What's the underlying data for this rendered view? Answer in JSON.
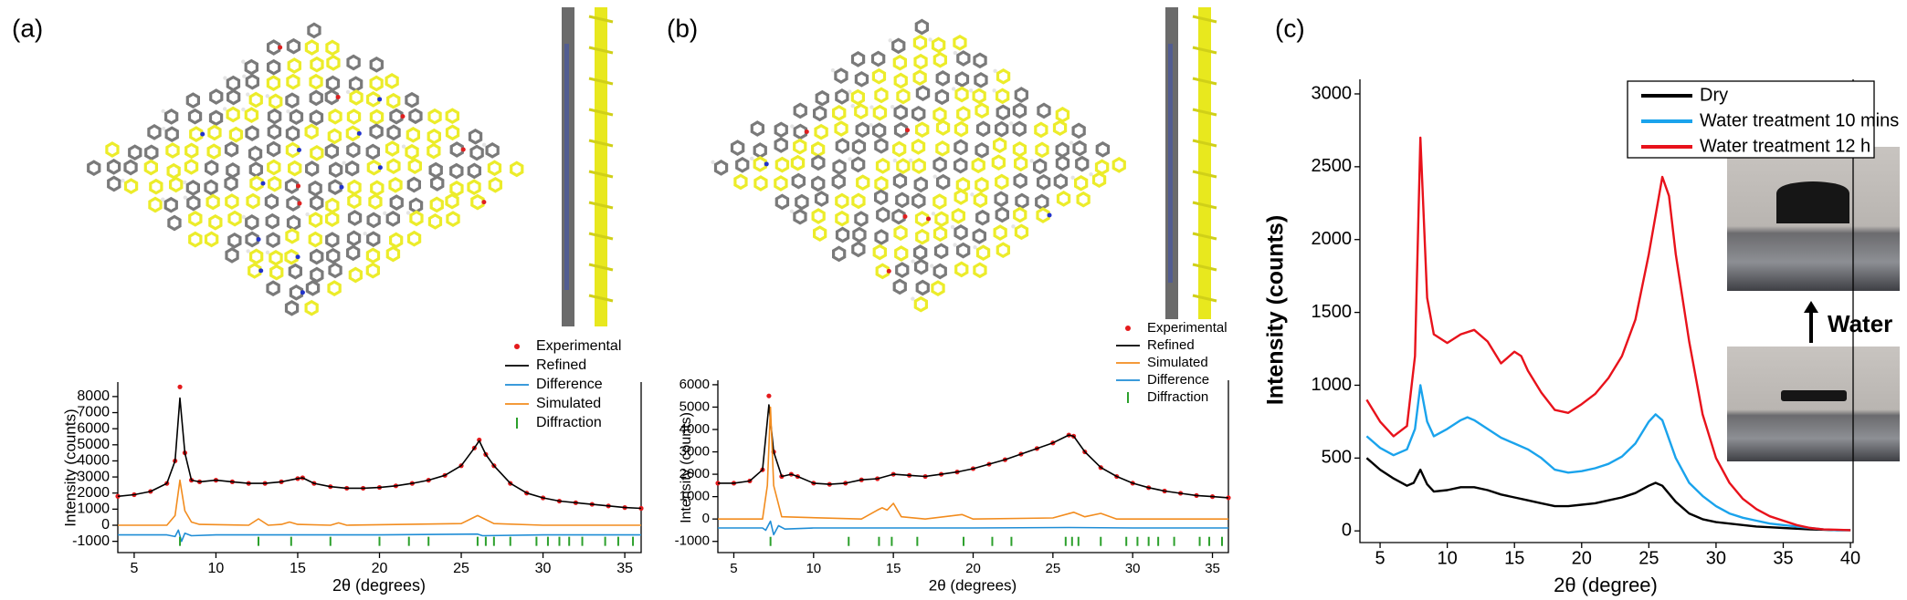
{
  "chart_data": [
    {
      "type": "line",
      "label": "(a)",
      "x_label": "2θ (degrees)",
      "y_label": "Intensity (counts)",
      "xlim": [
        4,
        36
      ],
      "xticks": [
        5,
        10,
        15,
        20,
        25,
        30,
        35
      ],
      "ylim": [
        -1700,
        8900
      ],
      "yticks": [
        -1000,
        0,
        1000,
        2000,
        3000,
        4000,
        5000,
        6000,
        7000,
        8000
      ],
      "series": [
        {
          "name": "Experimental",
          "color": "#e41a1c",
          "style": "dots",
          "x": [
            4,
            5,
            6,
            7,
            7.5,
            7.8,
            8.1,
            8.5,
            9,
            10,
            11,
            12,
            13,
            14,
            15,
            15.3,
            16,
            17,
            18,
            19,
            20,
            21,
            22,
            23,
            24,
            25,
            25.8,
            26.1,
            26.5,
            27,
            28,
            29,
            30,
            31,
            32,
            33,
            34,
            35,
            36
          ],
          "values": [
            1800,
            1900,
            2100,
            2600,
            4000,
            8600,
            4500,
            2800,
            2700,
            2800,
            2700,
            2600,
            2600,
            2700,
            2900,
            2950,
            2600,
            2400,
            2300,
            2300,
            2350,
            2450,
            2600,
            2800,
            3100,
            3700,
            4800,
            5300,
            4400,
            3700,
            2600,
            2000,
            1700,
            1500,
            1400,
            1300,
            1200,
            1100,
            1050
          ]
        },
        {
          "name": "Refined",
          "color": "#000000",
          "style": "line",
          "x": [
            4,
            5,
            6,
            7,
            7.5,
            7.8,
            8.1,
            8.5,
            9,
            10,
            11,
            12,
            13,
            14,
            15,
            15.3,
            16,
            17,
            18,
            19,
            20,
            21,
            22,
            23,
            24,
            25,
            25.8,
            26.1,
            26.5,
            27,
            28,
            29,
            30,
            31,
            32,
            33,
            34,
            35,
            36
          ],
          "values": [
            1800,
            1900,
            2100,
            2600,
            4000,
            7900,
            4500,
            2800,
            2700,
            2800,
            2700,
            2600,
            2600,
            2700,
            2900,
            2950,
            2600,
            2400,
            2300,
            2300,
            2350,
            2450,
            2600,
            2800,
            3100,
            3700,
            4800,
            5250,
            4400,
            3700,
            2600,
            2000,
            1700,
            1500,
            1400,
            1300,
            1200,
            1100,
            1050
          ]
        },
        {
          "name": "Difference",
          "color": "#1f8dd6",
          "style": "line",
          "x": [
            4,
            7,
            7.5,
            7.7,
            7.9,
            8.1,
            8.5,
            10,
            15,
            20,
            26,
            26.3,
            30,
            36
          ],
          "values": [
            -600,
            -600,
            -700,
            -300,
            -1000,
            -500,
            -650,
            -600,
            -600,
            -600,
            -550,
            -650,
            -600,
            -600
          ]
        },
        {
          "name": "Simulated",
          "color": "#f28c1e",
          "style": "line",
          "x": [
            4,
            7,
            7.5,
            7.8,
            8.1,
            8.5,
            9,
            12,
            12.6,
            13.2,
            14,
            14.5,
            15,
            17,
            17.5,
            18,
            25,
            26,
            27,
            30,
            36
          ],
          "values": [
            0,
            0,
            600,
            2800,
            900,
            200,
            50,
            0,
            400,
            0,
            50,
            200,
            50,
            0,
            150,
            0,
            100,
            600,
            100,
            0,
            0
          ]
        },
        {
          "name": "Diffraction",
          "color": "#2ca02c",
          "style": "ticks",
          "x": [
            7.8,
            12.6,
            14.6,
            17.0,
            20.0,
            21.8,
            23.0,
            26.0,
            26.5,
            27.0,
            28.0,
            29.6,
            30.3,
            31.0,
            31.6,
            32.4,
            33.8,
            34.6,
            35.5
          ],
          "values": [
            -1000,
            -1000,
            -1000,
            -1000,
            -1000,
            -1000,
            -1000,
            -1000,
            -1000,
            -1000,
            -1000,
            -1000,
            -1000,
            -1000,
            -1000,
            -1000,
            -1000,
            -1000,
            -1000
          ]
        }
      ]
    },
    {
      "type": "line",
      "label": "(b)",
      "x_label": "2θ (degrees)",
      "y_label": "Intensity (counts)",
      "xlim": [
        4,
        36
      ],
      "xticks": [
        5,
        10,
        15,
        20,
        25,
        30,
        35
      ],
      "ylim": [
        -1500,
        6200
      ],
      "yticks": [
        -1000,
        0,
        1000,
        2000,
        3000,
        4000,
        5000,
        6000
      ],
      "series": [
        {
          "name": "Experimental",
          "color": "#e41a1c",
          "style": "dots",
          "x": [
            4,
            5,
            6,
            6.8,
            7.2,
            7.5,
            8,
            8.6,
            9,
            10,
            11,
            12,
            13,
            14,
            15,
            16,
            17,
            18,
            19,
            20,
            21,
            22,
            23,
            24,
            25,
            26,
            26.3,
            27,
            28,
            29,
            30,
            31,
            32,
            33,
            34,
            35,
            36
          ],
          "values": [
            1600,
            1600,
            1700,
            2200,
            5500,
            3000,
            1900,
            2000,
            1900,
            1600,
            1550,
            1600,
            1750,
            1800,
            2000,
            1950,
            1900,
            2000,
            2100,
            2250,
            2450,
            2650,
            2900,
            3150,
            3400,
            3750,
            3700,
            3000,
            2300,
            1900,
            1600,
            1400,
            1250,
            1150,
            1050,
            1000,
            950
          ]
        },
        {
          "name": "Refined",
          "color": "#000000",
          "style": "line",
          "x": [
            4,
            5,
            6,
            6.8,
            7.2,
            7.5,
            8,
            8.6,
            9,
            10,
            11,
            12,
            13,
            14,
            15,
            16,
            17,
            18,
            19,
            20,
            21,
            22,
            23,
            24,
            25,
            26,
            26.3,
            27,
            28,
            29,
            30,
            31,
            32,
            33,
            34,
            35,
            36
          ],
          "values": [
            1600,
            1600,
            1700,
            2200,
            5100,
            3000,
            1900,
            2000,
            1900,
            1600,
            1550,
            1600,
            1750,
            1800,
            2000,
            1950,
            1900,
            2000,
            2100,
            2250,
            2450,
            2650,
            2900,
            3150,
            3400,
            3750,
            3700,
            3000,
            2300,
            1900,
            1600,
            1400,
            1250,
            1150,
            1050,
            1000,
            950
          ]
        },
        {
          "name": "Simulated",
          "color": "#f28c1e",
          "style": "line",
          "x": [
            4,
            6.8,
            7.1,
            7.3,
            7.5,
            8,
            13,
            14,
            14.3,
            14.6,
            15,
            15.5,
            17,
            19.3,
            20,
            25,
            26.3,
            27,
            28,
            29,
            36
          ],
          "values": [
            0,
            0,
            1500,
            5000,
            1500,
            100,
            0,
            400,
            500,
            400,
            700,
            100,
            0,
            200,
            0,
            50,
            300,
            100,
            250,
            0,
            0
          ]
        },
        {
          "name": "Difference",
          "color": "#1f8dd6",
          "style": "line",
          "x": [
            4,
            6.8,
            7.0,
            7.3,
            7.5,
            7.8,
            8.2,
            10,
            15,
            20,
            26,
            30,
            36
          ],
          "values": [
            -400,
            -400,
            -500,
            -100,
            -700,
            -300,
            -450,
            -400,
            -400,
            -400,
            -380,
            -400,
            -400
          ]
        },
        {
          "name": "Diffraction",
          "color": "#2ca02c",
          "style": "ticks",
          "x": [
            7.3,
            12.2,
            14.1,
            14.9,
            16.5,
            19.4,
            21.2,
            22.4,
            25.8,
            26.2,
            26.6,
            28.0,
            29.6,
            30.3,
            31.0,
            31.6,
            32.6,
            34.2,
            34.8,
            35.6
          ],
          "values": [
            -1000,
            -1000,
            -1000,
            -1000,
            -1000,
            -1000,
            -1000,
            -1000,
            -1000,
            -1000,
            -1000,
            -1000,
            -1000,
            -1000,
            -1000,
            -1000,
            -1000,
            -1000,
            -1000,
            -1000
          ]
        }
      ]
    },
    {
      "type": "line",
      "label": "(c)",
      "x_label": "2θ (degree)",
      "y_label": "Intensity (counts)",
      "annotation": "Water",
      "xlim": [
        3.5,
        40.2
      ],
      "xticks": [
        5,
        10,
        15,
        20,
        25,
        30,
        35,
        40
      ],
      "ylim": [
        -80,
        3100
      ],
      "yticks": [
        0,
        500,
        1000,
        1500,
        2000,
        2500,
        3000
      ],
      "series": [
        {
          "name": "Dry",
          "color": "#000000",
          "style": "line",
          "x": [
            4,
            5,
            6,
            7,
            7.5,
            8,
            8.5,
            9,
            10,
            11,
            12,
            13,
            14,
            15,
            16,
            17,
            18,
            19,
            20,
            21,
            22,
            23,
            24,
            25,
            25.5,
            26,
            27,
            28,
            29,
            30,
            31,
            32,
            33,
            34,
            35,
            36,
            37,
            38,
            39,
            40
          ],
          "values": [
            500,
            420,
            360,
            310,
            330,
            420,
            320,
            270,
            280,
            300,
            300,
            280,
            250,
            230,
            210,
            190,
            170,
            170,
            180,
            190,
            210,
            230,
            260,
            310,
            330,
            310,
            200,
            120,
            80,
            60,
            50,
            40,
            30,
            25,
            20,
            15,
            10,
            8,
            5,
            5
          ]
        },
        {
          "name": "Water treatment 10 mins",
          "color": "#1aa3ec",
          "style": "line",
          "x": [
            4,
            5,
            6,
            7,
            7.6,
            8,
            8.5,
            9,
            10,
            11,
            11.5,
            12,
            13,
            14,
            15,
            16,
            17,
            18,
            19,
            20,
            21,
            22,
            23,
            24,
            25,
            25.5,
            26,
            27,
            28,
            29,
            30,
            31,
            32,
            33,
            34,
            35,
            36,
            37,
            38,
            39,
            40
          ],
          "values": [
            650,
            570,
            520,
            560,
            700,
            1000,
            750,
            650,
            700,
            760,
            780,
            760,
            700,
            640,
            600,
            560,
            500,
            420,
            400,
            410,
            430,
            460,
            510,
            600,
            750,
            800,
            760,
            500,
            330,
            240,
            170,
            120,
            90,
            70,
            50,
            40,
            30,
            20,
            10,
            5,
            5
          ]
        },
        {
          "name": "Water treatment 12 h",
          "color": "#e8121b",
          "style": "line",
          "x": [
            4,
            5,
            6,
            7,
            7.6,
            8,
            8.5,
            9,
            10,
            11,
            12,
            13,
            14,
            15,
            15.5,
            16,
            17,
            18,
            19,
            20,
            21,
            22,
            23,
            24,
            25,
            26,
            26.5,
            27,
            28,
            29,
            30,
            31,
            32,
            33,
            34,
            35,
            36,
            37,
            38,
            39,
            40
          ],
          "values": [
            900,
            750,
            650,
            720,
            1200,
            2700,
            1600,
            1350,
            1290,
            1350,
            1380,
            1300,
            1150,
            1230,
            1200,
            1100,
            950,
            830,
            810,
            870,
            940,
            1050,
            1200,
            1450,
            1900,
            2430,
            2300,
            1900,
            1300,
            800,
            500,
            330,
            220,
            150,
            100,
            70,
            40,
            20,
            10,
            8,
            5
          ]
        }
      ]
    }
  ]
}
